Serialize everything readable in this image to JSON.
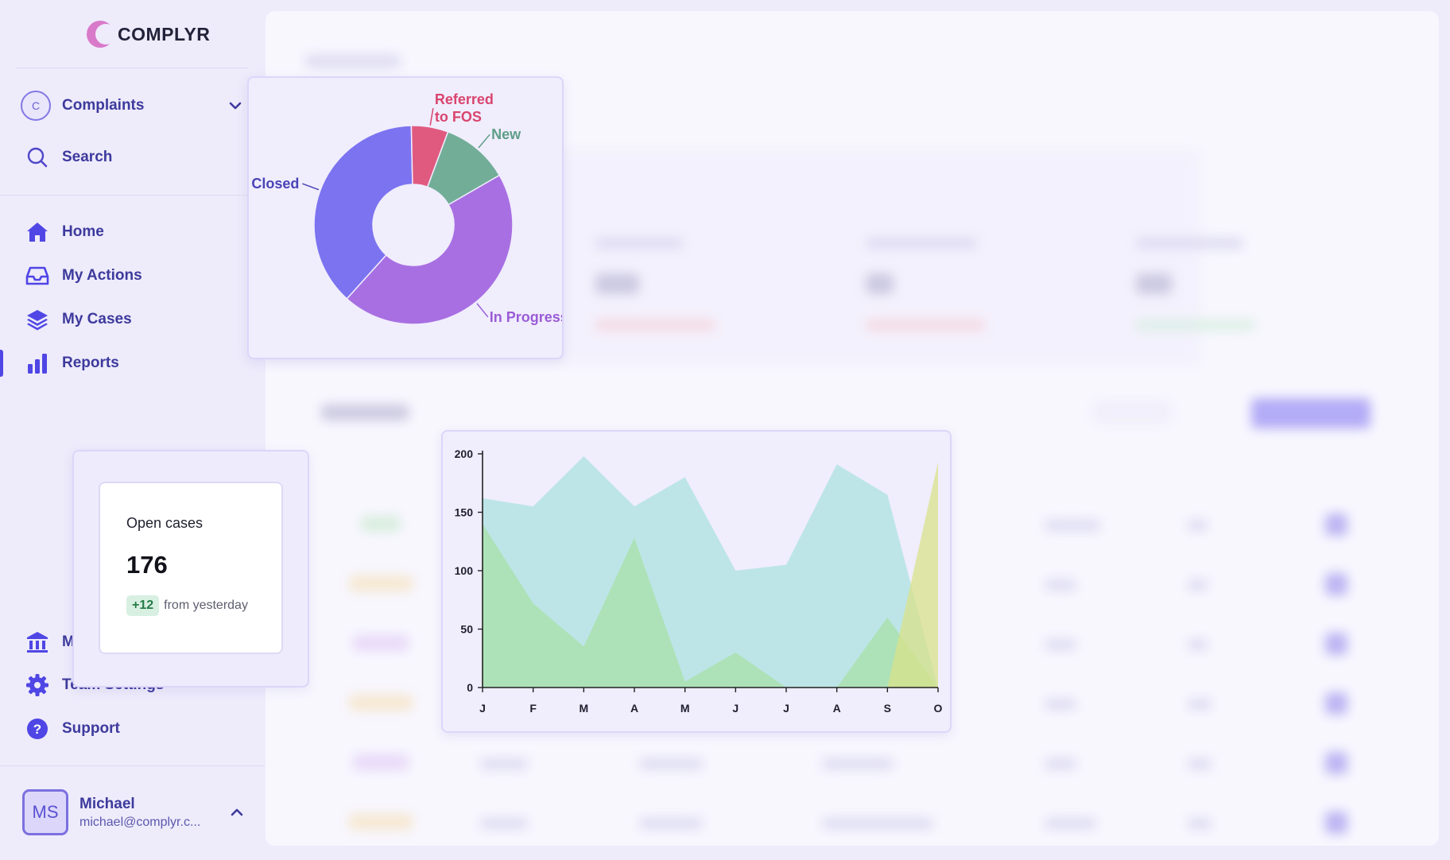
{
  "brand": {
    "name": "COMPLYR"
  },
  "workspace": {
    "avatar": "C",
    "label": "Complaints"
  },
  "search": {
    "label": "Search"
  },
  "nav": {
    "home": "Home",
    "my_actions": "My Actions",
    "my_cases": "My Cases",
    "reports": "Reports",
    "team_settings": "Team Settings",
    "support": "Support",
    "partially_hidden_item_initial": "M"
  },
  "user": {
    "initials": "MS",
    "name": "Michael",
    "email": "michael@complyr.c..."
  },
  "open_cases_card": {
    "title": "Open cases",
    "value": "176",
    "delta": "+12",
    "delta_suffix": "from yesterday"
  },
  "colors": {
    "accent": "#4f46e5",
    "closed": "#7b73f0",
    "referred": "#e05a80",
    "new": "#72ad98",
    "in_progress": "#a86fe2",
    "series_teal": "#a9e2de",
    "series_green": "#a6e0a6",
    "series_yellow": "#d9e28a"
  },
  "chart_data": [
    {
      "type": "pie",
      "donut": true,
      "slices": [
        {
          "label": "Closed",
          "value": 38
        },
        {
          "label": "Referred\nto FOS",
          "value": 6
        },
        {
          "label": "New",
          "value": 11
        },
        {
          "label": "In Progress",
          "value": 45
        }
      ]
    },
    {
      "type": "area",
      "x": [
        "J",
        "F",
        "M",
        "A",
        "M",
        "J",
        "J",
        "A",
        "S",
        "O"
      ],
      "ylim": [
        0,
        200
      ],
      "yticks": [
        0,
        50,
        100,
        150,
        200
      ],
      "series": [
        {
          "values": [
            162,
            155,
            198,
            155,
            180,
            100,
            105,
            191,
            165,
            0
          ]
        },
        {
          "values": [
            140,
            72,
            35,
            128,
            5,
            30,
            0,
            0,
            60,
            0
          ]
        },
        {
          "values": [
            0,
            0,
            0,
            0,
            0,
            0,
            0,
            0,
            0,
            193
          ]
        }
      ]
    }
  ]
}
